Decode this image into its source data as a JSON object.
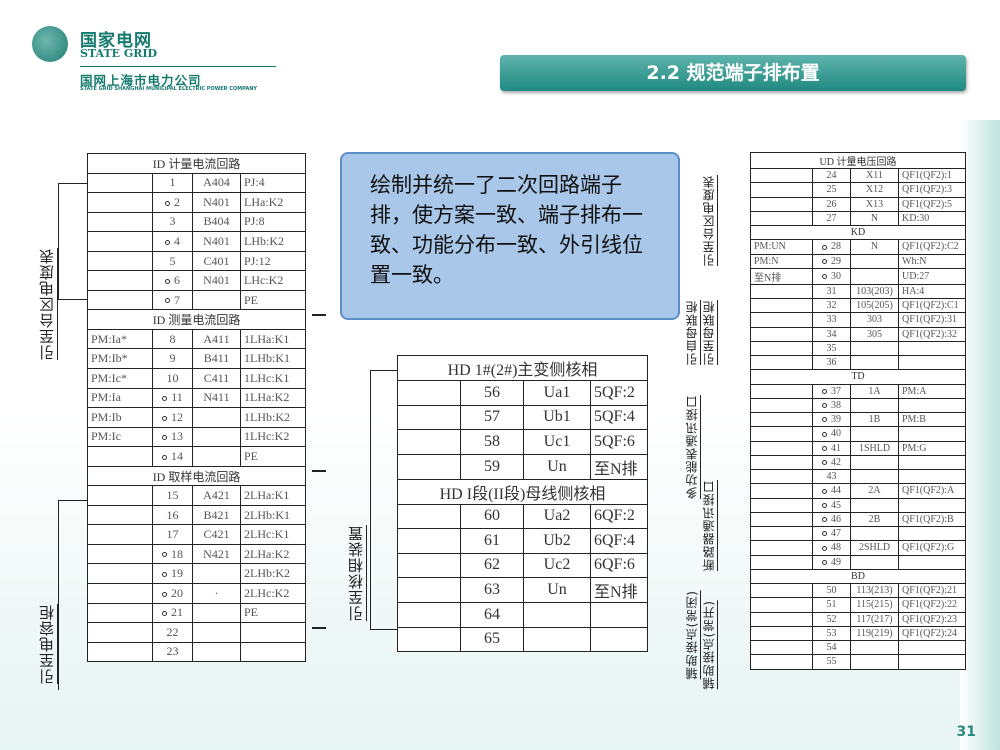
{
  "header": {
    "logo_cn": "国家电网",
    "logo_en": "STATE GRID",
    "company_cn": "国网上海市电力公司",
    "company_en": "STATE GRID SHANGHAI MUNICIPAL ELECTRIC POWER COMPANY"
  },
  "title": "2.2 规范端子排布置",
  "callout": "绘制并统一了二次回路端子排，使方案一致、端子排布一致、功能分布一致、外引线位置一致。",
  "labels": {
    "left_top": "引至台区电度表",
    "left_bottom": "引至电容柜",
    "middle": "引至核相装置",
    "right_1": "引至台区电度表",
    "right_2a": "引自母联柜",
    "right_2b": "引至母联柜",
    "right_3a": "多功能表通讯接口",
    "right_3b": "断路器通讯接口",
    "right_4a": "辅助接点(常闭)",
    "right_4b": "辅助接点(常开)"
  },
  "left_table": [
    {
      "header": "ID 计量电流回路"
    },
    [
      "",
      "1",
      "A404",
      "PJ:4",
      0
    ],
    [
      "",
      "2",
      "N401",
      "LHa:K2",
      1
    ],
    [
      "",
      "3",
      "B404",
      "PJ:8",
      0
    ],
    [
      "",
      "4",
      "N401",
      "LHb:K2",
      1
    ],
    [
      "",
      "5",
      "C401",
      "PJ:12",
      0
    ],
    [
      "",
      "6",
      "N401",
      "LHc:K2",
      1
    ],
    [
      "",
      "7",
      "",
      "PE",
      1
    ],
    {
      "header": "ID 测量电流回路"
    },
    [
      "PM:Ia*",
      "8",
      "A411",
      "1LHa:K1",
      0
    ],
    [
      "PM:Ib*",
      "9",
      "B411",
      "1LHb:K1",
      0
    ],
    [
      "PM:Ic*",
      "10",
      "C411",
      "1LHc:K1",
      0
    ],
    [
      "PM:Ia",
      "11",
      "N411",
      "1LHa:K2",
      1
    ],
    [
      "PM:Ib",
      "12",
      "",
      "1LHb:K2",
      1
    ],
    [
      "PM:Ic",
      "13",
      "",
      "1LHc:K2",
      1
    ],
    [
      "",
      "14",
      "",
      "PE",
      1
    ],
    {
      "header": "ID 取样电流回路"
    },
    [
      "",
      "15",
      "A421",
      "2LHa:K1",
      0
    ],
    [
      "",
      "16",
      "B421",
      "2LHb:K1",
      0
    ],
    [
      "",
      "17",
      "C421",
      "2LHc:K1",
      0
    ],
    [
      "",
      "18",
      "N421",
      "2LHa:K2",
      1
    ],
    [
      "",
      "19",
      "",
      "2LHb:K2",
      1
    ],
    [
      "",
      "20",
      "·",
      "2LHc:K2",
      1
    ],
    [
      "",
      "21",
      "",
      "PE",
      1
    ],
    [
      "",
      "22",
      "",
      "",
      0
    ],
    [
      "",
      "23",
      "",
      "",
      0
    ]
  ],
  "mid_table": [
    {
      "header": "HD 1#(2#)主变侧核相"
    },
    [
      "",
      "56",
      "Ua1",
      "5QF:2",
      0
    ],
    [
      "",
      "57",
      "Ub1",
      "5QF:4",
      0
    ],
    [
      "",
      "58",
      "Uc1",
      "5QF:6",
      0
    ],
    [
      "",
      "59",
      "Un",
      "至N排",
      0
    ],
    {
      "header": "HD I段(II段)母线侧核相"
    },
    [
      "",
      "60",
      "Ua2",
      "6QF:2",
      0
    ],
    [
      "",
      "61",
      "Ub2",
      "6QF:4",
      0
    ],
    [
      "",
      "62",
      "Uc2",
      "6QF:6",
      0
    ],
    [
      "",
      "63",
      "Un",
      "至N排",
      0
    ],
    [
      "",
      "64",
      "",
      "",
      0
    ],
    [
      "",
      "65",
      "",
      "",
      0
    ]
  ],
  "right_table": [
    {
      "header": "UD 计量电压回路"
    },
    [
      "",
      "24",
      "X11",
      "QF1(QF2):1",
      0
    ],
    [
      "",
      "25",
      "X12",
      "QF1(QF2):3",
      0
    ],
    [
      "",
      "26",
      "X13",
      "QF1(QF2):5",
      0
    ],
    [
      "",
      "27",
      "N",
      "KD:30",
      0
    ],
    {
      "header": "KD"
    },
    [
      "PM:UN",
      "28",
      "N",
      "QF1(QF2):C2",
      1
    ],
    [
      "PM:N",
      "29",
      "",
      "Wh:N",
      1
    ],
    [
      "至N排",
      "30",
      "",
      "UD:27",
      1
    ],
    [
      "",
      "31",
      "103(203)",
      "HA:4",
      0
    ],
    [
      "",
      "32",
      "105(205)",
      "QF1(QF2):C1",
      0
    ],
    [
      "",
      "33",
      "303",
      "QF1(QF2):31",
      0
    ],
    [
      "",
      "34",
      "305",
      "QF1(QF2):32",
      0
    ],
    [
      "",
      "35",
      "",
      "",
      0
    ],
    [
      "",
      "36",
      "",
      "",
      0
    ],
    {
      "header": "TD"
    },
    [
      "",
      "37",
      "1A",
      "PM:A",
      1
    ],
    [
      "",
      "38",
      "",
      "",
      1
    ],
    [
      "",
      "39",
      "1B",
      "PM:B",
      1
    ],
    [
      "",
      "40",
      "",
      "",
      1
    ],
    [
      "",
      "41",
      "1SHLD",
      "PM:G",
      1
    ],
    [
      "",
      "42",
      "",
      "",
      1
    ],
    [
      "",
      "43",
      "",
      "",
      0
    ],
    [
      "",
      "44",
      "2A",
      "QF1(QF2):A",
      1
    ],
    [
      "",
      "45",
      "",
      "",
      1
    ],
    [
      "",
      "46",
      "2B",
      "QF1(QF2):B",
      1
    ],
    [
      "",
      "47",
      "",
      "",
      1
    ],
    [
      "",
      "48",
      "2SHLD",
      "QF1(QF2):G",
      1
    ],
    [
      "",
      "49",
      "",
      "",
      1
    ],
    {
      "header": "BD"
    },
    [
      "",
      "50",
      "113(213)",
      "QF1(QF2):21",
      0
    ],
    [
      "",
      "51",
      "115(215)",
      "QF1(QF2):22",
      0
    ],
    [
      "",
      "52",
      "117(217)",
      "QF1(QF2):23",
      0
    ],
    [
      "",
      "53",
      "119(219)",
      "QF1(QF2):24",
      0
    ],
    [
      "",
      "54",
      "",
      "",
      0
    ],
    [
      "",
      "55",
      "",
      "",
      0
    ]
  ],
  "page_number": "31",
  "colors": {
    "brand": "#157a6e",
    "title_bar": "#2a9288",
    "callout_fill": "#a9c7e9",
    "callout_border": "#5d8ec7"
  }
}
